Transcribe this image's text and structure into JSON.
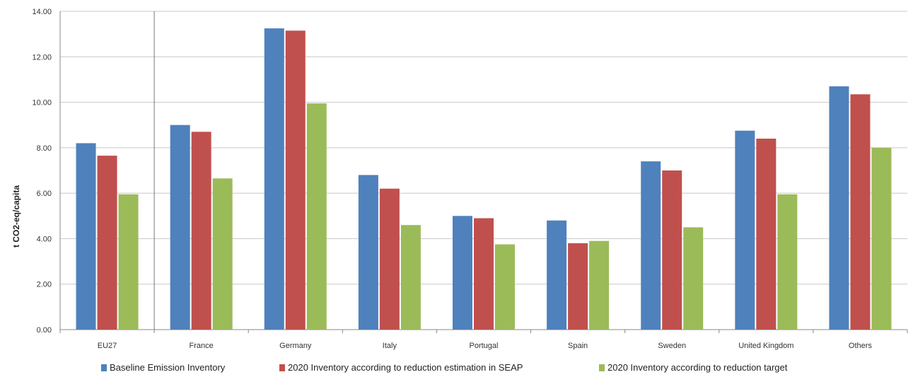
{
  "chart_data": {
    "type": "bar",
    "title": "",
    "xlabel": "",
    "ylabel": "t CO2-eq/capita",
    "ylim": [
      0,
      14
    ],
    "yticks": [
      "0.00",
      "2.00",
      "4.00",
      "6.00",
      "8.00",
      "10.00",
      "12.00",
      "14.00"
    ],
    "grid": true,
    "legend_position": "bottom",
    "categories": [
      "EU27",
      "France",
      "Germany",
      "Italy",
      "Portugal",
      "Spain",
      "Sweden",
      "United Kingdom",
      "Others"
    ],
    "series": [
      {
        "name": "Baseline Emission Inventory",
        "color": "#4f81bd",
        "values": [
          8.2,
          9.0,
          13.25,
          6.8,
          5.0,
          4.8,
          7.4,
          8.75,
          10.7
        ]
      },
      {
        "name": "2020 Inventory according to reduction estimation in SEAP",
        "color": "#c0504d",
        "values": [
          7.65,
          8.7,
          13.15,
          6.2,
          4.9,
          3.8,
          7.0,
          8.4,
          10.35
        ]
      },
      {
        "name": "2020 Inventory according to reduction target",
        "color": "#9bbb59",
        "values": [
          5.95,
          6.65,
          9.95,
          4.6,
          3.75,
          3.9,
          4.5,
          5.95,
          8.0
        ]
      }
    ]
  }
}
